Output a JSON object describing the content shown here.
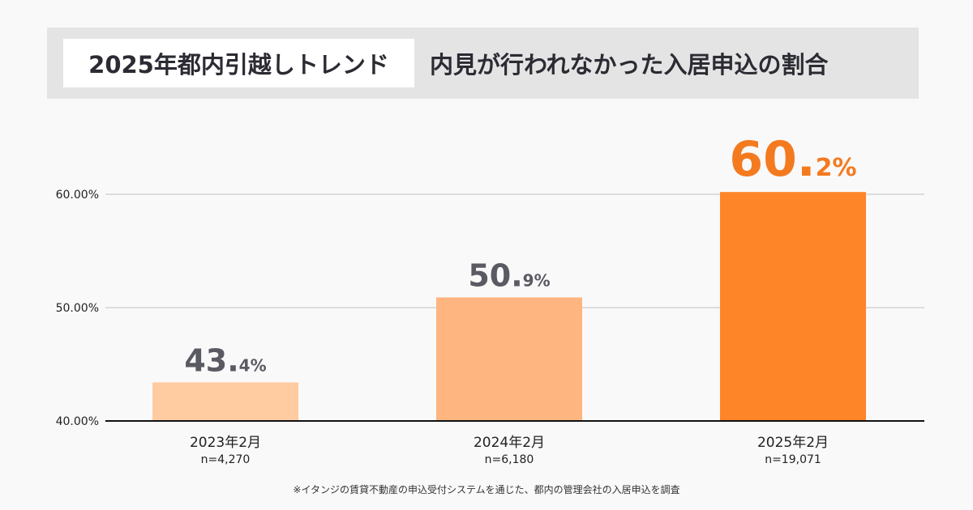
{
  "header": {
    "tag": "2025年都内引越しトレンド",
    "title": "内見が行われなかった入居申込の割合"
  },
  "chart_data": {
    "type": "bar",
    "title": "内見が行われなかった入居申込の割合",
    "categories": [
      "2023年2月",
      "2024年2月",
      "2025年2月"
    ],
    "sample_sizes": [
      "n=4,270",
      "n=6,180",
      "n=19,071"
    ],
    "values": [
      43.4,
      50.9,
      60.2
    ],
    "label_int": [
      "43.",
      "50.",
      "60."
    ],
    "label_dec": [
      "4%",
      "9%",
      "2%"
    ],
    "yticks": [
      "40.00%",
      "50.00%",
      "60.00%"
    ],
    "ytick_values": [
      40,
      50,
      60
    ],
    "ylim": [
      40,
      62
    ],
    "grid": true,
    "colors": [
      "#ffcba1",
      "#ffb57f",
      "#ff8529"
    ],
    "label_colors": [
      "#5a5a63",
      "#5a5a63",
      "#f47a20"
    ]
  },
  "footnote": "※イタンジの賃貸不動産の申込受付システムを通じた、都内の管理会社の入居申込を調査"
}
